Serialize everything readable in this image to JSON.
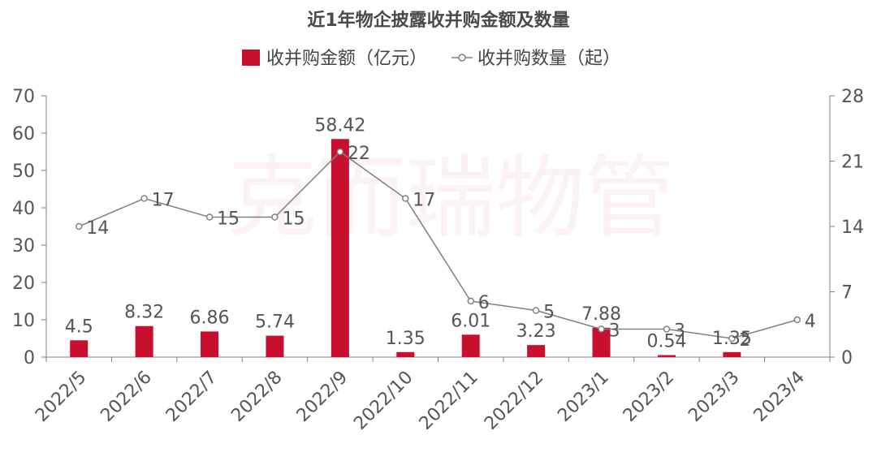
{
  "watermark": "克而瑞物管",
  "chart_data": {
    "type": "bar",
    "title": "近1年物企披露收并购金额及数量",
    "categories": [
      "2022/5",
      "2022/6",
      "2022/7",
      "2022/8",
      "2022/9",
      "2022/10",
      "2022/11",
      "2022/12",
      "2023/1",
      "2023/2",
      "2023/3",
      "2023/4"
    ],
    "series": [
      {
        "name": "收并购金额（亿元）",
        "type": "bar",
        "axis": "left",
        "color": "#c8102e",
        "values": [
          4.5,
          8.32,
          6.86,
          5.74,
          58.42,
          1.35,
          6.01,
          3.23,
          7.88,
          0.54,
          1.35,
          null
        ],
        "labels": [
          "4.5",
          "8.32",
          "6.86",
          "5.74",
          "58.42",
          "1.35",
          "6.01",
          "3.23",
          "7.88",
          "0.54",
          "1.35",
          ""
        ]
      },
      {
        "name": "收并购数量（起）",
        "type": "line",
        "axis": "right",
        "color": "#808080",
        "values": [
          14,
          17,
          15,
          15,
          22,
          17,
          6,
          5,
          3,
          3,
          2,
          4
        ],
        "labels": [
          "14",
          "17",
          "15",
          "15",
          "22",
          "17",
          "6",
          "5",
          "3",
          "3",
          "2",
          "4"
        ]
      }
    ],
    "y_left": {
      "min": 0,
      "max": 70,
      "ticks": [
        0,
        10,
        20,
        30,
        40,
        50,
        60,
        70
      ],
      "tick_labels": [
        "0",
        "10",
        "20",
        "30",
        "40",
        "50",
        "60",
        "70"
      ]
    },
    "y_right": {
      "min": 0,
      "max": 28,
      "ticks": [
        0,
        7,
        14,
        21,
        28
      ],
      "tick_labels": [
        "0",
        "7",
        "14",
        "21",
        "28"
      ]
    },
    "legend_position": "top-center",
    "grid": false
  }
}
